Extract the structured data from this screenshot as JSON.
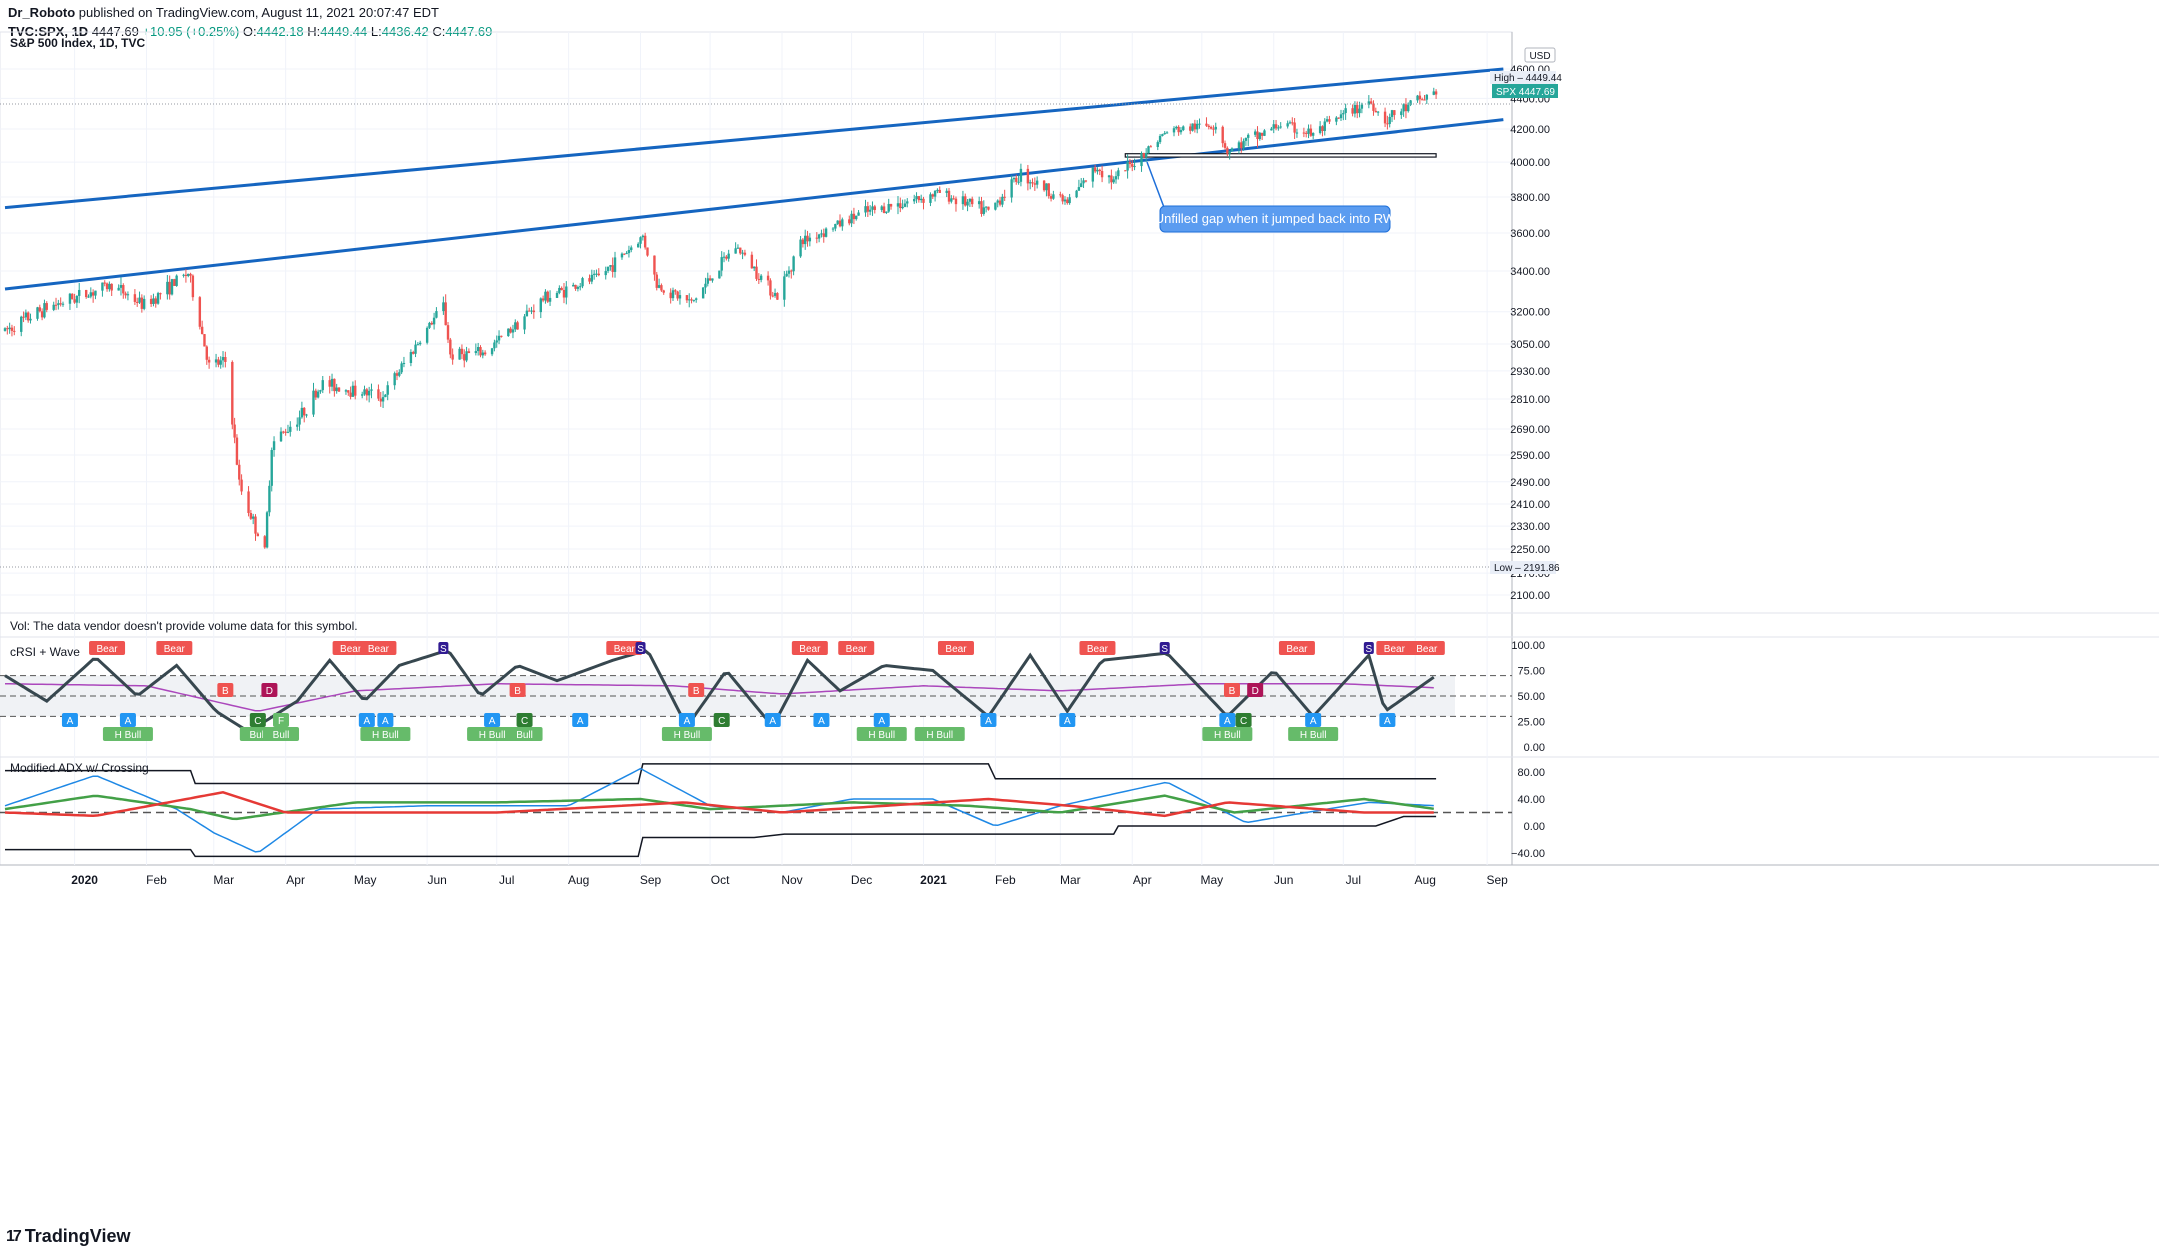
{
  "header": {
    "author": "Dr_Roboto",
    "published": "published on TradingView.com, August 11, 2021 20:07:47 EDT",
    "symbol": "TVC:SPX, 1D",
    "last": "4447.69",
    "change": "+10.95 (+0.25%)",
    "o_label": "O:",
    "o": "4442.18",
    "h_label": "H:",
    "h": "4449.44",
    "l_label": "L:",
    "l": "4436.42",
    "c_label": "C:",
    "c": "4447.69"
  },
  "footer": {
    "brand": "TradingView",
    "logo": "17"
  },
  "colors": {
    "up": "#26a69a",
    "down": "#ef5350",
    "channel": "#1565c0",
    "crsi": "#37474f",
    "wave": "#ab47bc",
    "adx_blue": "#1e88e5",
    "adx_green": "#43a047",
    "adx_red": "#e53935",
    "bounds": "#131722"
  },
  "chart_data": [
    {
      "type": "candlestick",
      "title": "S&P 500 Index, 1D, TVC",
      "currency": "USD",
      "scale": "log",
      "ylim": [
        2050,
        4800
      ],
      "y_ticks": [
        2100,
        2170,
        2250,
        2330,
        2410,
        2490,
        2590,
        2690,
        2810,
        2930,
        3050,
        3200,
        3400,
        3600,
        3800,
        4000,
        4200,
        4400,
        4600
      ],
      "x_ticks": [
        "2020",
        "Feb",
        "Mar",
        "Apr",
        "May",
        "Jun",
        "Jul",
        "Aug",
        "Sep",
        "Oct",
        "Nov",
        "Dec",
        "2021",
        "Feb",
        "Mar",
        "Apr",
        "May",
        "Jun",
        "Jul",
        "Aug",
        "Sep"
      ],
      "x_domain": [
        "2019-12-02",
        "2021-09-10"
      ],
      "price_path": [
        [
          "2019-12-02",
          3110
        ],
        [
          "2019-12-20",
          3220
        ],
        [
          "2020-01-17",
          3330
        ],
        [
          "2020-01-31",
          3230
        ],
        [
          "2020-02-19",
          3390
        ],
        [
          "2020-02-28",
          2950
        ],
        [
          "2020-03-06",
          2970
        ],
        [
          "2020-03-12",
          2480
        ],
        [
          "2020-03-16",
          2390
        ],
        [
          "2020-03-23",
          2237
        ],
        [
          "2020-03-26",
          2630
        ],
        [
          "2020-04-08",
          2750
        ],
        [
          "2020-04-17",
          2875
        ],
        [
          "2020-05-13",
          2820
        ],
        [
          "2020-06-08",
          3230
        ],
        [
          "2020-06-11",
          3000
        ],
        [
          "2020-06-26",
          3010
        ],
        [
          "2020-07-22",
          3270
        ],
        [
          "2020-08-14",
          3370
        ],
        [
          "2020-09-02",
          3580
        ],
        [
          "2020-09-08",
          3330
        ],
        [
          "2020-09-23",
          3240
        ],
        [
          "2020-10-12",
          3530
        ],
        [
          "2020-10-30",
          3270
        ],
        [
          "2020-11-09",
          3550
        ],
        [
          "2020-12-04",
          3700
        ],
        [
          "2021-01-08",
          3825
        ],
        [
          "2021-01-29",
          3714
        ],
        [
          "2021-02-12",
          3935
        ],
        [
          "2021-03-04",
          3768
        ],
        [
          "2021-03-17",
          3975
        ],
        [
          "2021-03-24",
          3890
        ],
        [
          "2021-04-16",
          4185
        ],
        [
          "2021-05-07",
          4232
        ],
        [
          "2021-05-12",
          4063
        ],
        [
          "2021-06-04",
          4230
        ],
        [
          "2021-06-18",
          4166
        ],
        [
          "2021-07-12",
          4384
        ],
        [
          "2021-07-19",
          4258
        ],
        [
          "2021-08-10",
          4447
        ]
      ],
      "high": "4449.44",
      "low": "2191.86",
      "high_label": "High",
      "low_label": "Low",
      "last_label": "SPX",
      "last_value": "4447.69",
      "annotations": {
        "channel_lines": [
          {
            "from": [
              "2019-12-02",
              3740
            ],
            "to": [
              "2021-09-08",
              4600
            ]
          },
          {
            "from": [
              "2019-12-02",
              3310
            ],
            "to": [
              "2021-09-08",
              4260
            ]
          }
        ],
        "gap_box": {
          "from": [
            "2021-03-29",
            4050
          ],
          "to": [
            "2021-08-10",
            4030
          ]
        },
        "callout": "Unfilled gap when it jumped back into RW"
      }
    },
    {
      "type": "line",
      "title": "Vol: The data vendor doesn't provide volume data for this symbol."
    },
    {
      "type": "line",
      "title": "cRSI + Wave",
      "ylim": [
        0,
        100
      ],
      "y_ticks": [
        "100.00",
        "75.00",
        "50.00",
        "25.00",
        "0.00"
      ],
      "levels": [
        70,
        50,
        30
      ],
      "series": [
        {
          "name": "cRSI",
          "approx_path": [
            [
              "2019-12-02",
              70
            ],
            [
              "2019-12-20",
              45
            ],
            [
              "2020-01-10",
              88
            ],
            [
              "2020-01-28",
              50
            ],
            [
              "2020-02-14",
              80
            ],
            [
              "2020-03-02",
              35
            ],
            [
              "2020-03-16",
              15
            ],
            [
              "2020-04-06",
              45
            ],
            [
              "2020-04-20",
              85
            ],
            [
              "2020-05-05",
              45
            ],
            [
              "2020-05-20",
              80
            ],
            [
              "2020-06-10",
              95
            ],
            [
              "2020-06-24",
              50
            ],
            [
              "2020-07-10",
              80
            ],
            [
              "2020-07-27",
              65
            ],
            [
              "2020-08-20",
              85
            ],
            [
              "2020-09-04",
              95
            ],
            [
              "2020-09-21",
              20
            ],
            [
              "2020-10-08",
              75
            ],
            [
              "2020-10-28",
              20
            ],
            [
              "2020-11-12",
              85
            ],
            [
              "2020-11-26",
              55
            ],
            [
              "2020-12-15",
              80
            ],
            [
              "2021-01-05",
              75
            ],
            [
              "2021-01-29",
              30
            ],
            [
              "2021-02-16",
              90
            ],
            [
              "2021-03-04",
              35
            ],
            [
              "2021-03-19",
              85
            ],
            [
              "2021-04-16",
              92
            ],
            [
              "2021-05-12",
              30
            ],
            [
              "2021-06-01",
              75
            ],
            [
              "2021-06-18",
              30
            ],
            [
              "2021-07-12",
              90
            ],
            [
              "2021-07-19",
              35
            ],
            [
              "2021-08-10",
              70
            ]
          ]
        },
        {
          "name": "Wave",
          "approx_path": [
            [
              "2019-12-02",
              62
            ],
            [
              "2020-02-01",
              60
            ],
            [
              "2020-03-20",
              35
            ],
            [
              "2020-05-01",
              55
            ],
            [
              "2020-07-01",
              62
            ],
            [
              "2020-09-15",
              60
            ],
            [
              "2020-11-01",
              52
            ],
            [
              "2021-01-01",
              60
            ],
            [
              "2021-03-01",
              55
            ],
            [
              "2021-05-01",
              62
            ],
            [
              "2021-07-01",
              62
            ],
            [
              "2021-08-10",
              58
            ]
          ]
        }
      ],
      "labels": {
        "bull": "Bull",
        "bear": "Bear",
        "hbull": "H Bull"
      },
      "signals": [
        {
          "d": "2019-12-30",
          "t": "A",
          "k": "low"
        },
        {
          "d": "2020-01-10",
          "t": "S",
          "k": "top"
        },
        {
          "d": "2020-01-15",
          "t": "Bear",
          "k": "top"
        },
        {
          "d": "2020-01-24",
          "t": "A",
          "k": "low"
        },
        {
          "d": "2020-01-24",
          "t": "H Bull",
          "k": "low2"
        },
        {
          "d": "2020-02-13",
          "t": "Bear",
          "k": "top"
        },
        {
          "d": "2020-03-06",
          "t": "B",
          "k": "mid"
        },
        {
          "d": "2020-03-20",
          "t": "C",
          "k": "low"
        },
        {
          "d": "2020-03-20",
          "t": "Bull",
          "k": "low2"
        },
        {
          "d": "2020-03-25",
          "t": "D",
          "k": "mid"
        },
        {
          "d": "2020-03-30",
          "t": "F",
          "k": "low"
        },
        {
          "d": "2020-03-30",
          "t": "Bull",
          "k": "low2"
        },
        {
          "d": "2020-04-29",
          "t": "Bear",
          "k": "top"
        },
        {
          "d": "2020-05-11",
          "t": "Bear",
          "k": "top"
        },
        {
          "d": "2020-05-06",
          "t": "A",
          "k": "low"
        },
        {
          "d": "2020-05-14",
          "t": "A",
          "k": "low"
        },
        {
          "d": "2020-05-14",
          "t": "H Bull",
          "k": "low2"
        },
        {
          "d": "2020-06-08",
          "t": "S",
          "k": "top"
        },
        {
          "d": "2020-06-29",
          "t": "A",
          "k": "low"
        },
        {
          "d": "2020-06-29",
          "t": "H Bull",
          "k": "low2"
        },
        {
          "d": "2020-07-10",
          "t": "B",
          "k": "mid"
        },
        {
          "d": "2020-07-13",
          "t": "C",
          "k": "low"
        },
        {
          "d": "2020-07-13",
          "t": "Bull",
          "k": "low2"
        },
        {
          "d": "2020-08-06",
          "t": "A",
          "k": "low"
        },
        {
          "d": "2020-08-25",
          "t": "Bear",
          "k": "top"
        },
        {
          "d": "2020-09-01",
          "t": "S",
          "k": "top"
        },
        {
          "d": "2020-09-21",
          "t": "A",
          "k": "low"
        },
        {
          "d": "2020-09-21",
          "t": "H Bull",
          "k": "low2"
        },
        {
          "d": "2020-09-25",
          "t": "B",
          "k": "mid"
        },
        {
          "d": "2020-10-06",
          "t": "C",
          "k": "low"
        },
        {
          "d": "2020-10-28",
          "t": "A",
          "k": "low"
        },
        {
          "d": "2020-11-13",
          "t": "Bear",
          "k": "top"
        },
        {
          "d": "2020-11-18",
          "t": "A",
          "k": "low"
        },
        {
          "d": "2020-12-03",
          "t": "Bear",
          "k": "top"
        },
        {
          "d": "2020-12-14",
          "t": "A",
          "k": "low"
        },
        {
          "d": "2020-12-14",
          "t": "H Bull",
          "k": "low2"
        },
        {
          "d": "2021-01-08",
          "t": "H Bull",
          "k": "low2"
        },
        {
          "d": "2021-01-15",
          "t": "Bear",
          "k": "top"
        },
        {
          "d": "2021-01-29",
          "t": "A",
          "k": "low"
        },
        {
          "d": "2021-03-04",
          "t": "A",
          "k": "low"
        },
        {
          "d": "2021-03-17",
          "t": "Bear",
          "k": "top"
        },
        {
          "d": "2021-04-15",
          "t": "S",
          "k": "top"
        },
        {
          "d": "2021-05-12",
          "t": "A",
          "k": "low"
        },
        {
          "d": "2021-05-12",
          "t": "H Bull",
          "k": "low2"
        },
        {
          "d": "2021-05-14",
          "t": "B",
          "k": "mid"
        },
        {
          "d": "2021-05-19",
          "t": "C",
          "k": "low"
        },
        {
          "d": "2021-05-24",
          "t": "D",
          "k": "mid"
        },
        {
          "d": "2021-06-11",
          "t": "Bear",
          "k": "top"
        },
        {
          "d": "2021-06-18",
          "t": "A",
          "k": "low"
        },
        {
          "d": "2021-06-18",
          "t": "H Bull",
          "k": "low2"
        },
        {
          "d": "2021-07-12",
          "t": "S",
          "k": "top"
        },
        {
          "d": "2021-07-20",
          "t": "A",
          "k": "low"
        },
        {
          "d": "2021-07-23",
          "t": "Bear",
          "k": "top"
        },
        {
          "d": "2021-08-06",
          "t": "Bear",
          "k": "top"
        }
      ]
    },
    {
      "type": "line",
      "title": "Modified ADX w/ Crossing",
      "ylim": [
        -50,
        100
      ],
      "y_ticks": [
        "80.00",
        "40.00",
        "0.00",
        "−40.00"
      ],
      "reference_level": 20,
      "series": [
        {
          "name": "ADX",
          "approx_path": [
            [
              "2019-12-02",
              30
            ],
            [
              "2020-01-10",
              75
            ],
            [
              "2020-02-14",
              25
            ],
            [
              "2020-03-01",
              -10
            ],
            [
              "2020-03-20",
              -40
            ],
            [
              "2020-04-15",
              25
            ],
            [
              "2020-06-01",
              30
            ],
            [
              "2020-08-01",
              30
            ],
            [
              "2020-09-01",
              85
            ],
            [
              "2020-10-01",
              30
            ],
            [
              "2020-11-01",
              20
            ],
            [
              "2020-12-01",
              40
            ],
            [
              "2021-01-05",
              40
            ],
            [
              "2021-02-01",
              0
            ],
            [
              "2021-03-01",
              30
            ],
            [
              "2021-04-16",
              65
            ],
            [
              "2021-05-20",
              5
            ],
            [
              "2021-06-15",
              20
            ],
            [
              "2021-07-12",
              35
            ],
            [
              "2021-08-10",
              30
            ]
          ]
        },
        {
          "name": "DI+",
          "approx_path": [
            [
              "2019-12-02",
              25
            ],
            [
              "2020-01-10",
              45
            ],
            [
              "2020-02-20",
              25
            ],
            [
              "2020-03-10",
              10
            ],
            [
              "2020-05-01",
              35
            ],
            [
              "2020-07-01",
              35
            ],
            [
              "2020-09-01",
              40
            ],
            [
              "2020-10-01",
              25
            ],
            [
              "2020-12-01",
              35
            ],
            [
              "2021-01-20",
              30
            ],
            [
              "2021-03-01",
              20
            ],
            [
              "2021-04-15",
              45
            ],
            [
              "2021-05-15",
              20
            ],
            [
              "2021-07-10",
              40
            ],
            [
              "2021-08-10",
              25
            ]
          ]
        },
        {
          "name": "DI-",
          "approx_path": [
            [
              "2019-12-02",
              20
            ],
            [
              "2020-01-10",
              15
            ],
            [
              "2020-03-05",
              50
            ],
            [
              "2020-04-01",
              20
            ],
            [
              "2020-07-01",
              20
            ],
            [
              "2020-09-20",
              35
            ],
            [
              "2020-11-01",
              20
            ],
            [
              "2021-01-29",
              40
            ],
            [
              "2021-03-05",
              30
            ],
            [
              "2021-04-15",
              15
            ],
            [
              "2021-05-12",
              35
            ],
            [
              "2021-07-10",
              20
            ],
            [
              "2021-08-10",
              20
            ]
          ]
        }
      ],
      "bounds": {
        "upper": [
          [
            "2019-12-02",
            82
          ],
          [
            "2020-02-20",
            82
          ],
          [
            "2020-02-22",
            63
          ],
          [
            "2020-08-31",
            63
          ],
          [
            "2020-09-02",
            92
          ],
          [
            "2021-01-29",
            92
          ],
          [
            "2021-02-01",
            70
          ],
          [
            "2021-08-10",
            70
          ]
        ],
        "lower": [
          [
            "2019-12-02",
            -35
          ],
          [
            "2020-02-20",
            -35
          ],
          [
            "2020-02-22",
            -45
          ],
          [
            "2020-08-31",
            -45
          ],
          [
            "2020-09-02",
            -17
          ],
          [
            "2020-10-20",
            -17
          ],
          [
            "2020-11-02",
            -12
          ],
          [
            "2021-03-24",
            -12
          ],
          [
            "2021-03-26",
            0
          ],
          [
            "2021-07-15",
            0
          ],
          [
            "2021-07-27",
            14
          ],
          [
            "2021-08-10",
            14
          ]
        ]
      }
    }
  ]
}
